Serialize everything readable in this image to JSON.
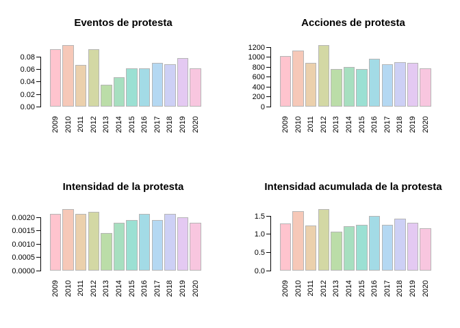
{
  "page": {
    "background": "#ffffff",
    "text_color": "#000000",
    "axis_color": "#000000",
    "bar_border_color": "#b5b5b5"
  },
  "years": [
    "2009",
    "2010",
    "2011",
    "2012",
    "2013",
    "2014",
    "2015",
    "2016",
    "2017",
    "2018",
    "2019",
    "2020"
  ],
  "bar_colors": [
    "#ffc4ce",
    "#f6c8b8",
    "#ebd0ac",
    "#d3d8a4",
    "#bbdda8",
    "#a7dfc0",
    "#9be0d3",
    "#a3dbe6",
    "#b4d8f2",
    "#cdd0f5",
    "#e4c9f2",
    "#f8c6df"
  ],
  "chart_data": [
    {
      "type": "bar",
      "title": "Eventos de protesta",
      "categories": [
        "2009",
        "2010",
        "2011",
        "2012",
        "2013",
        "2014",
        "2015",
        "2016",
        "2017",
        "2018",
        "2019",
        "2020"
      ],
      "values": [
        0.092,
        0.098,
        0.066,
        0.091,
        0.035,
        0.047,
        0.061,
        0.061,
        0.07,
        0.068,
        0.077,
        0.061
      ],
      "xlabel": "",
      "ylabel": "",
      "ylim": [
        0,
        0.098
      ],
      "yticks": [
        "0.00",
        "0.02",
        "0.04",
        "0.06",
        "0.08"
      ],
      "ytick_values": [
        0,
        0.02,
        0.04,
        0.06,
        0.08
      ],
      "grid": false,
      "legend": "none"
    },
    {
      "type": "bar",
      "title": "Acciones de protesta",
      "categories": [
        "2009",
        "2010",
        "2011",
        "2012",
        "2013",
        "2014",
        "2015",
        "2016",
        "2017",
        "2018",
        "2019",
        "2020"
      ],
      "values": [
        1020,
        1130,
        875,
        1240,
        760,
        800,
        760,
        965,
        850,
        900,
        880,
        770
      ],
      "xlabel": "",
      "ylabel": "",
      "ylim": [
        0,
        1240
      ],
      "yticks": [
        "0",
        "200",
        "400",
        "600",
        "800",
        "1000",
        "1200"
      ],
      "ytick_values": [
        0,
        200,
        400,
        600,
        800,
        1000,
        1200
      ],
      "grid": false,
      "legend": "none"
    },
    {
      "type": "bar",
      "title": "Intensidad de la protesta",
      "categories": [
        "2009",
        "2010",
        "2011",
        "2012",
        "2013",
        "2014",
        "2015",
        "2016",
        "2017",
        "2018",
        "2019",
        "2020"
      ],
      "values": [
        0.00212,
        0.0023,
        0.00212,
        0.0022,
        0.0014,
        0.0018,
        0.0019,
        0.00212,
        0.0019,
        0.00212,
        0.002,
        0.0018
      ],
      "xlabel": "",
      "ylabel": "",
      "ylim": [
        0,
        0.0023
      ],
      "yticks": [
        "0.0000",
        "0.0005",
        "0.0010",
        "0.0015",
        "0.0020"
      ],
      "ytick_values": [
        0,
        0.0005,
        0.001,
        0.0015,
        0.002
      ],
      "grid": false,
      "legend": "none"
    },
    {
      "type": "bar",
      "title": "Intensidad acumulada de la protesta",
      "categories": [
        "2009",
        "2010",
        "2011",
        "2012",
        "2013",
        "2014",
        "2015",
        "2016",
        "2017",
        "2018",
        "2019",
        "2020"
      ],
      "values": [
        1.28,
        1.62,
        1.23,
        1.68,
        1.06,
        1.21,
        1.25,
        1.5,
        1.25,
        1.41,
        1.3,
        1.16
      ],
      "xlabel": "",
      "ylabel": "",
      "ylim": [
        0,
        1.68
      ],
      "yticks": [
        "0.0",
        "0.5",
        "1.0",
        "1.5"
      ],
      "ytick_values": [
        0,
        0.5,
        1.0,
        1.5
      ],
      "grid": false,
      "legend": "none"
    }
  ]
}
